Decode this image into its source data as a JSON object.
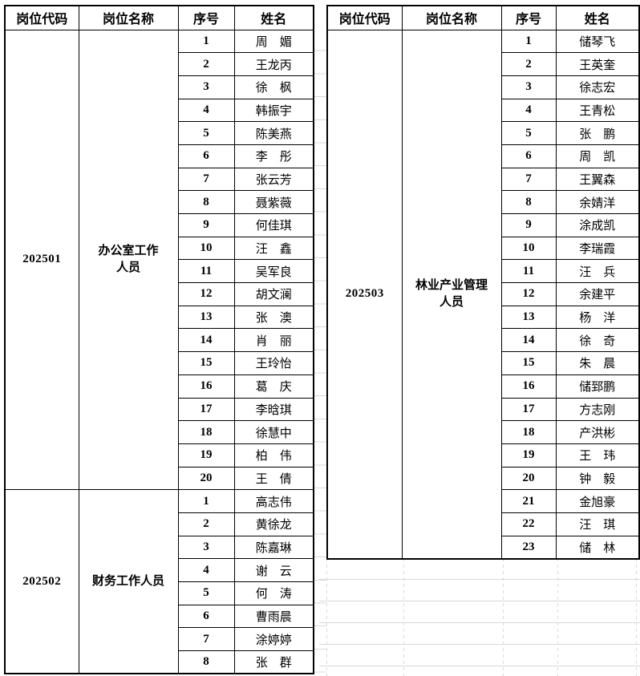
{
  "page": {
    "background_color": "#ffffff",
    "gridline_color": "#d9d9d9",
    "table_border_color": "#000000"
  },
  "columns": [
    "岗位代码",
    "岗位名称",
    "序号",
    "姓名"
  ],
  "tables": [
    {
      "name": "left",
      "sections": [
        {
          "code": "202501",
          "title": "办公室工作\n人员",
          "rows": [
            {
              "no": "1",
              "name": "周　媚"
            },
            {
              "no": "2",
              "name": "王龙丙"
            },
            {
              "no": "3",
              "name": "徐　枫"
            },
            {
              "no": "4",
              "name": "韩振宇"
            },
            {
              "no": "5",
              "name": "陈美燕"
            },
            {
              "no": "6",
              "name": "李　彤"
            },
            {
              "no": "7",
              "name": "张云芳"
            },
            {
              "no": "8",
              "name": "聂紫薇"
            },
            {
              "no": "9",
              "name": "何佳琪"
            },
            {
              "no": "10",
              "name": "汪　鑫"
            },
            {
              "no": "11",
              "name": "吴军良"
            },
            {
              "no": "12",
              "name": "胡文澜"
            },
            {
              "no": "13",
              "name": "张　澳"
            },
            {
              "no": "14",
              "name": "肖　丽"
            },
            {
              "no": "15",
              "name": "王玲怡"
            },
            {
              "no": "16",
              "name": "葛　庆"
            },
            {
              "no": "17",
              "name": "李晗琪"
            },
            {
              "no": "18",
              "name": "徐慧中"
            },
            {
              "no": "19",
              "name": "柏　伟"
            },
            {
              "no": "20",
              "name": "王　倩"
            }
          ]
        },
        {
          "code": "202502",
          "title": "财务工作人员",
          "rows": [
            {
              "no": "1",
              "name": "高志伟"
            },
            {
              "no": "2",
              "name": "黄徐龙"
            },
            {
              "no": "3",
              "name": "陈嘉琳"
            },
            {
              "no": "4",
              "name": "谢　云"
            },
            {
              "no": "5",
              "name": "何　涛"
            },
            {
              "no": "6",
              "name": "曹雨晨"
            },
            {
              "no": "7",
              "name": "涂婷婷"
            },
            {
              "no": "8",
              "name": "张　群"
            }
          ]
        }
      ]
    },
    {
      "name": "right",
      "sections": [
        {
          "code": "202503",
          "title": "林业产业管理\n人员",
          "rows": [
            {
              "no": "1",
              "name": "储琴飞"
            },
            {
              "no": "2",
              "name": "王英奎"
            },
            {
              "no": "3",
              "name": "徐志宏"
            },
            {
              "no": "4",
              "name": "王青松"
            },
            {
              "no": "5",
              "name": "张　鹏"
            },
            {
              "no": "6",
              "name": "周　凯"
            },
            {
              "no": "7",
              "name": "王翼森"
            },
            {
              "no": "8",
              "name": "余婧洋"
            },
            {
              "no": "9",
              "name": "涂成凯"
            },
            {
              "no": "10",
              "name": "李瑞霞"
            },
            {
              "no": "11",
              "name": "汪　兵"
            },
            {
              "no": "12",
              "name": "余建平"
            },
            {
              "no": "13",
              "name": "杨　洋"
            },
            {
              "no": "14",
              "name": "徐　奇"
            },
            {
              "no": "15",
              "name": "朱　晨"
            },
            {
              "no": "16",
              "name": "储郅鹏"
            },
            {
              "no": "17",
              "name": "方志刚"
            },
            {
              "no": "18",
              "name": "产洪彬"
            },
            {
              "no": "19",
              "name": "王　玮"
            },
            {
              "no": "20",
              "name": "钟　毅"
            },
            {
              "no": "21",
              "name": "金旭豪"
            },
            {
              "no": "22",
              "name": "汪　琪"
            },
            {
              "no": "23",
              "name": "储　林"
            }
          ]
        }
      ]
    }
  ]
}
